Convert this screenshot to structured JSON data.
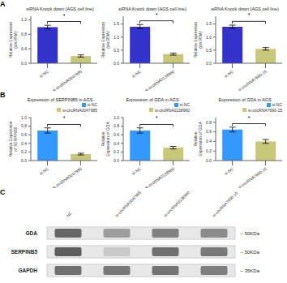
{
  "chart_data": [
    {
      "type": "bar",
      "title": "siRNA Knock down (AGS cell line)",
      "ylabel": "Relative Expression (circRNA)",
      "categories": [
        "si-NC",
        "si-circRNA0047985"
      ],
      "values": [
        1.0,
        0.2
      ],
      "errors": [
        0.05,
        0.03
      ],
      "colors": [
        "#3333cc",
        "#c8c87a"
      ],
      "ylim": [
        0,
        1.3
      ],
      "yticks": [
        {
          "value": 0,
          "label": "0.0"
        },
        0.2,
        0.4,
        0.6,
        0.8,
        {
          "value": 1,
          "label": "1.0"
        },
        1.2
      ],
      "grid": false,
      "annotations": [
        {
          "text": "*",
          "between": [
            "si-NC",
            "si-circRNA0047985"
          ]
        },
        {
          "text": "A"
        }
      ]
    },
    {
      "type": "bar",
      "title": "siRNA Knock down (AGS cell line)",
      "ylabel": "Relative Expression (circRNA)",
      "categories": [
        "si-NC",
        "si-circRNA0138960"
      ],
      "values": [
        1.4,
        0.35
      ],
      "errors": [
        0.08,
        0.04
      ],
      "colors": [
        "#3333cc",
        "#c8c87a"
      ],
      "ylim": [
        0,
        1.8
      ],
      "yticks": [
        {
          "value": 0,
          "label": "0.0"
        },
        0.5,
        {
          "value": 1,
          "label": "1.0"
        },
        1.5
      ],
      "grid": false,
      "annotations": [
        {
          "text": "*",
          "between": [
            "si-NC",
            "si-circRNA0138960"
          ]
        }
      ]
    },
    {
      "type": "bar",
      "title": "siRNA Knock down (AGS cell line)",
      "ylabel": "Relative Expression (circRNA)",
      "categories": [
        "si-NC",
        "si-circRNA7690-15"
      ],
      "values": [
        1.4,
        0.55
      ],
      "errors": [
        0.06,
        0.05
      ],
      "colors": [
        "#3333cc",
        "#c8c87a"
      ],
      "ylim": [
        0,
        1.8
      ],
      "yticks": [
        {
          "value": 0,
          "label": "0.0"
        },
        0.5,
        {
          "value": 1,
          "label": "1.0"
        },
        1.5
      ],
      "grid": false,
      "annotations": [
        {
          "text": "*",
          "between": [
            "si-NC",
            "si-circRNA7690-15"
          ]
        }
      ]
    },
    {
      "type": "bar",
      "title": "Expression of SERPINB5 in AGS",
      "ylabel": "Relative Expression of SERPINB5",
      "categories": [
        "si-NC",
        "si-circRNA0047985"
      ],
      "values": [
        0.7,
        0.15
      ],
      "errors": [
        0.06,
        0.02
      ],
      "colors": [
        "#3399ff",
        "#c8c87a"
      ],
      "ylim": [
        0,
        1.0
      ],
      "yticks": [
        {
          "value": 0,
          "label": "0.0"
        },
        0.2,
        0.4,
        0.6,
        0.8,
        {
          "value": 1,
          "label": "1.0"
        }
      ],
      "grid": false,
      "legend": "upper right",
      "annotations": [
        {
          "text": "*",
          "between": [
            "si-NC",
            "si-circRNA0047985"
          ]
        },
        {
          "text": "B"
        }
      ]
    },
    {
      "type": "bar",
      "title": "Expression of GDA in AGS",
      "ylabel": "Relative Expression of GDA",
      "categories": [
        "si-NC",
        "si-circRNA0138960"
      ],
      "values": [
        0.7,
        0.3
      ],
      "errors": [
        0.06,
        0.03
      ],
      "colors": [
        "#3399ff",
        "#c8c87a"
      ],
      "ylim": [
        0,
        1.0
      ],
      "yticks": [
        {
          "value": 0,
          "label": "0.0"
        },
        0.2,
        0.4,
        0.6,
        0.8,
        {
          "value": 1,
          "label": "1.0"
        }
      ],
      "grid": false,
      "legend": "upper right",
      "annotations": [
        {
          "text": "*",
          "between": [
            "si-NC",
            "si-circRNA0138960"
          ]
        }
      ]
    },
    {
      "type": "bar",
      "title": "Expression of GDA in AGS",
      "ylabel": "Relative Expression of GDA",
      "categories": [
        "si-NC",
        "si-circRNA7690-15"
      ],
      "values": [
        0.65,
        0.4
      ],
      "errors": [
        0.05,
        0.04
      ],
      "colors": [
        "#3399ff",
        "#c8c87a"
      ],
      "ylim": [
        0,
        0.9
      ],
      "yticks": [
        {
          "value": 0,
          "label": "0.0"
        },
        0.2,
        0.4,
        0.6,
        0.8
      ],
      "grid": false,
      "legend": "upper right",
      "annotations": [
        {
          "text": "*",
          "between": [
            "si-NC",
            "si-circRNA7690-15"
          ]
        }
      ]
    },
    {
      "type": "heatmap",
      "categories": [
        "NC",
        "si-circRNA0047985",
        "si-circRNA0138960",
        "si-circRNA7690-15"
      ],
      "rows": [
        "GDA",
        "SERPINB5",
        "GAPDH"
      ],
      "cells": [
        [
          0.85,
          0.55,
          0.7,
          0.65
        ],
        [
          0.9,
          0.3,
          0.8,
          0.75
        ],
        [
          0.8,
          0.75,
          0.78,
          0.72
        ]
      ],
      "annotations": [
        {
          "text": "-- 50KDa",
          "row": "GDA"
        },
        {
          "text": "-- 50KDa",
          "row": "SERPINB5"
        },
        {
          "text": "-- 35KDa",
          "row": "GAPDH"
        },
        {
          "text": "C"
        }
      ]
    }
  ]
}
